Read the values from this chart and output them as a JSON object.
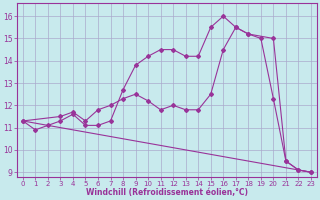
{
  "background_color": "#c8eaed",
  "grid_color": "#aaaacc",
  "line_color": "#993399",
  "xlabel": "Windchill (Refroidissement éolien,°C)",
  "xlim": [
    -0.5,
    23.5
  ],
  "ylim": [
    8.8,
    16.6
  ],
  "yticks": [
    9,
    10,
    11,
    12,
    13,
    14,
    15,
    16
  ],
  "xticks": [
    0,
    1,
    2,
    3,
    4,
    5,
    6,
    7,
    8,
    9,
    10,
    11,
    12,
    13,
    14,
    15,
    16,
    17,
    18,
    19,
    20,
    21,
    22,
    23
  ],
  "curve1_x": [
    0,
    1,
    2,
    3,
    4,
    5,
    6,
    7,
    8,
    9,
    10,
    11,
    12,
    13,
    14,
    15,
    16,
    17,
    18,
    19,
    20,
    21,
    22,
    23
  ],
  "curve1_y": [
    11.3,
    10.9,
    11.1,
    11.3,
    11.6,
    11.1,
    11.1,
    11.3,
    12.7,
    13.8,
    14.2,
    14.5,
    14.5,
    14.2,
    14.2,
    15.5,
    16.0,
    15.5,
    15.2,
    15.0,
    12.3,
    9.5,
    9.1,
    9.0
  ],
  "curve2_x": [
    0,
    3,
    4,
    5,
    6,
    7,
    8,
    9,
    10,
    11,
    12,
    13,
    14,
    15,
    16,
    17,
    18,
    20,
    21,
    22,
    23
  ],
  "curve2_y": [
    11.3,
    11.5,
    11.7,
    11.3,
    11.8,
    12.0,
    12.3,
    12.5,
    12.2,
    11.8,
    12.0,
    11.8,
    11.8,
    12.5,
    14.5,
    15.5,
    15.2,
    15.0,
    9.5,
    9.1,
    9.0
  ],
  "curve3_x": [
    0,
    23
  ],
  "curve3_y": [
    11.3,
    9.0
  ]
}
